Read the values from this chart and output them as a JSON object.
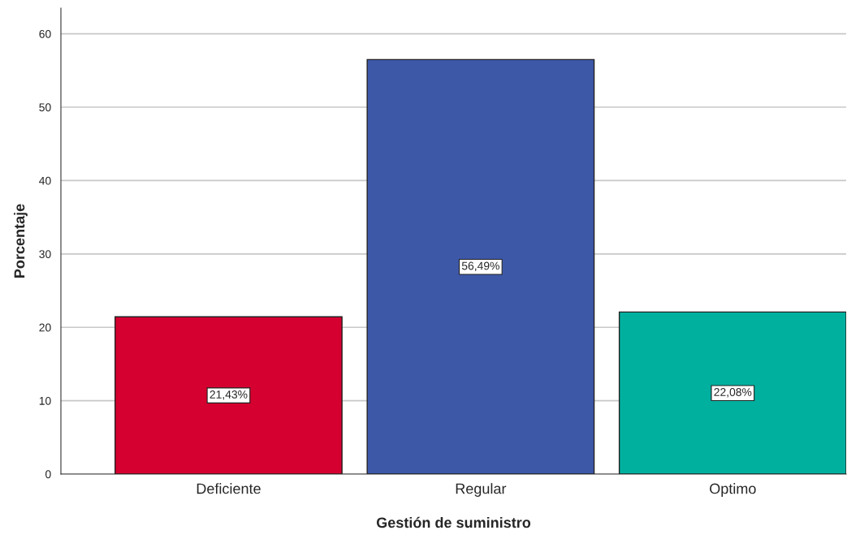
{
  "chart_data": {
    "type": "bar",
    "xlabel": "Gestión de suministro",
    "ylabel": "Porcentaje",
    "categories": [
      "Deficiente",
      "Regular",
      "Optimo"
    ],
    "values": [
      21.43,
      56.49,
      22.08
    ],
    "value_labels": [
      "21,43%",
      "56,49%",
      "22,08%"
    ],
    "colors": [
      "#d5002f",
      "#3e58a8",
      "#00b09f"
    ],
    "ylim": [
      0,
      63.5
    ],
    "yticks": [
      0,
      10,
      20,
      30,
      40,
      50,
      60
    ],
    "grid": "y",
    "legend": false
  }
}
